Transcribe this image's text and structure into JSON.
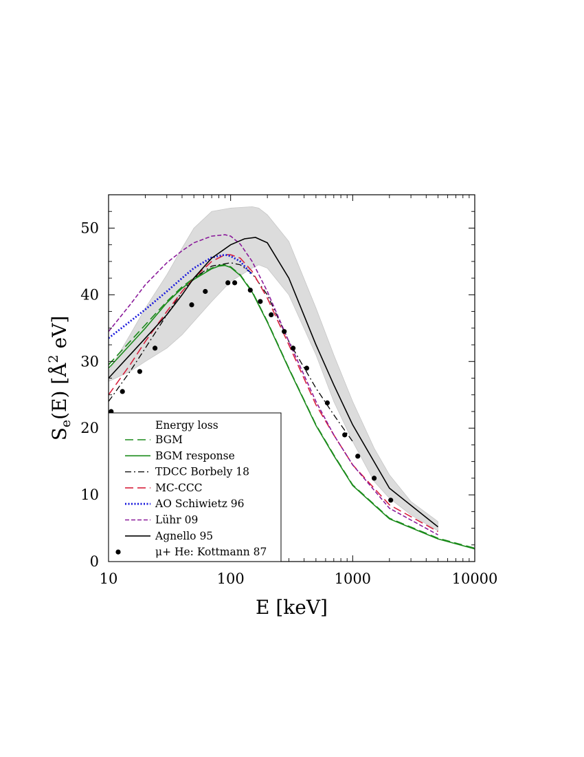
{
  "chart_data": {
    "type": "line",
    "xlabel": "E [keV]",
    "ylabel_main": "S",
    "ylabel_sub": "e",
    "ylabel_rest": "(E) [Å",
    "ylabel_sup": "2",
    "ylabel_end": " eV]",
    "xscale": "log",
    "xlim": [
      10,
      10000
    ],
    "ylim": [
      0,
      55
    ],
    "xticks": [
      10,
      100,
      1000,
      10000
    ],
    "xtick_labels": [
      "10",
      "100",
      "1000",
      "10000"
    ],
    "yticks": [
      0,
      10,
      20,
      30,
      40,
      50
    ],
    "ytick_labels": [
      "0",
      "10",
      "20",
      "30",
      "40",
      "50"
    ],
    "grid": false,
    "legend_title": "Energy loss",
    "legend_position": "bottom-left",
    "band": {
      "color": "#dcdcdc",
      "x": [
        10,
        15,
        20,
        30,
        40,
        50,
        70,
        100,
        150,
        170,
        200,
        300,
        500,
        700,
        1000,
        1500,
        2000,
        3000,
        5000
      ],
      "upper": [
        28.5,
        34,
        38,
        43,
        47,
        50,
        52.5,
        53,
        53.2,
        53,
        52,
        48,
        38,
        31,
        24,
        17,
        13,
        9,
        6
      ],
      "lower": [
        27,
        28.5,
        30,
        32,
        34,
        36,
        39,
        42,
        44,
        44.5,
        44,
        40,
        31,
        24,
        18,
        12,
        9.5,
        7,
        4.6
      ]
    },
    "series": [
      {
        "name": "BGM",
        "color": "#1a8a1a",
        "dash": "12,6",
        "width": 1.6,
        "x": [
          10,
          15,
          20,
          30,
          40,
          50,
          70,
          80,
          90,
          100,
          120,
          150,
          200,
          300,
          500,
          700,
          1000,
          2000,
          5000,
          10000
        ],
        "y": [
          29.5,
          33,
          35.5,
          39,
          41.2,
          42.5,
          44,
          44.4,
          44.5,
          44.2,
          43,
          40.5,
          36,
          29,
          20.5,
          16,
          11.5,
          6.5,
          3.5,
          2
        ]
      },
      {
        "name": "BGM response",
        "color": "#1a8a1a",
        "dash": "",
        "width": 1.6,
        "x": [
          10,
          15,
          20,
          30,
          40,
          50,
          70,
          80,
          90,
          100,
          120,
          150,
          200,
          300,
          500,
          700,
          1000,
          2000,
          5000,
          10000
        ],
        "y": [
          29,
          32.5,
          35,
          38.8,
          41,
          42.3,
          43.9,
          44.3,
          44.4,
          44.1,
          42.9,
          40.4,
          35.9,
          28.9,
          20.4,
          15.9,
          11.4,
          6.4,
          3.4,
          1.9
        ]
      },
      {
        "name": "TDCC Borbely 18",
        "color": "#000000",
        "dash": "9,4,2,4",
        "width": 1.3,
        "x": [
          10,
          15,
          20,
          30,
          40,
          50,
          70,
          100,
          120,
          150,
          200,
          300,
          500,
          700,
          1000
        ],
        "y": [
          24,
          28.5,
          32,
          37,
          40.5,
          42.5,
          44.3,
          44.8,
          44.5,
          43.2,
          40,
          33,
          26,
          22,
          18
        ]
      },
      {
        "name": "MC-CCC",
        "color": "#d8203c",
        "dash": "12,6",
        "width": 1.6,
        "x": [
          10,
          15,
          20,
          30,
          40,
          50,
          70,
          90,
          100,
          120,
          150,
          200,
          300,
          500,
          700,
          1000,
          2000,
          5000
        ],
        "y": [
          25,
          29.5,
          33,
          37.5,
          40.5,
          42.5,
          45,
          46,
          46,
          45.5,
          43.5,
          39.5,
          32.5,
          23.5,
          19,
          14.5,
          8.5,
          4.5
        ]
      },
      {
        "name": "AO Schiwietz 96",
        "color": "#1a1adc",
        "dash": "2,2.5",
        "width": 2.8,
        "x": [
          10,
          15,
          20,
          30,
          40,
          50,
          70,
          90,
          100,
          120,
          150
        ],
        "y": [
          33.5,
          36,
          37.8,
          40.5,
          42.5,
          44,
          45.6,
          46,
          45.8,
          45,
          43
        ]
      },
      {
        "name": "Lühr 09",
        "color": "#8a1a9a",
        "dash": "6,3",
        "width": 1.6,
        "x": [
          10,
          15,
          20,
          30,
          40,
          50,
          70,
          90,
          100,
          120,
          150,
          200,
          300,
          500,
          700,
          1000,
          2000,
          5000
        ],
        "y": [
          34.5,
          38.5,
          41.5,
          44.8,
          46.6,
          47.8,
          48.8,
          49,
          48.8,
          47.6,
          45,
          40.5,
          33,
          24,
          19,
          14.5,
          8,
          4
        ]
      },
      {
        "name": "Agnello 95",
        "color": "#000000",
        "dash": "",
        "width": 1.6,
        "x": [
          10,
          15,
          20,
          30,
          40,
          50,
          70,
          100,
          130,
          160,
          200,
          300,
          500,
          700,
          1000,
          2000,
          5000
        ],
        "y": [
          27.5,
          31,
          33.5,
          37,
          40,
          42.5,
          45.5,
          47.5,
          48.4,
          48.6,
          47.8,
          42.5,
          32.5,
          26.5,
          20.5,
          11,
          5.2
        ]
      }
    ],
    "points": {
      "name": "μ+ He: Kottmann 87",
      "color": "#000000",
      "x": [
        10.5,
        13,
        18,
        24,
        48,
        62,
        95,
        108,
        145,
        175,
        215,
        275,
        325,
        420,
        620,
        860,
        1100,
        1500,
        2050
      ],
      "y": [
        22.5,
        25.5,
        28.5,
        32,
        38.5,
        40.5,
        41.8,
        41.8,
        40.7,
        39,
        37,
        34.5,
        32,
        29,
        23.8,
        19,
        15.8,
        12.5,
        9.2
      ]
    }
  }
}
